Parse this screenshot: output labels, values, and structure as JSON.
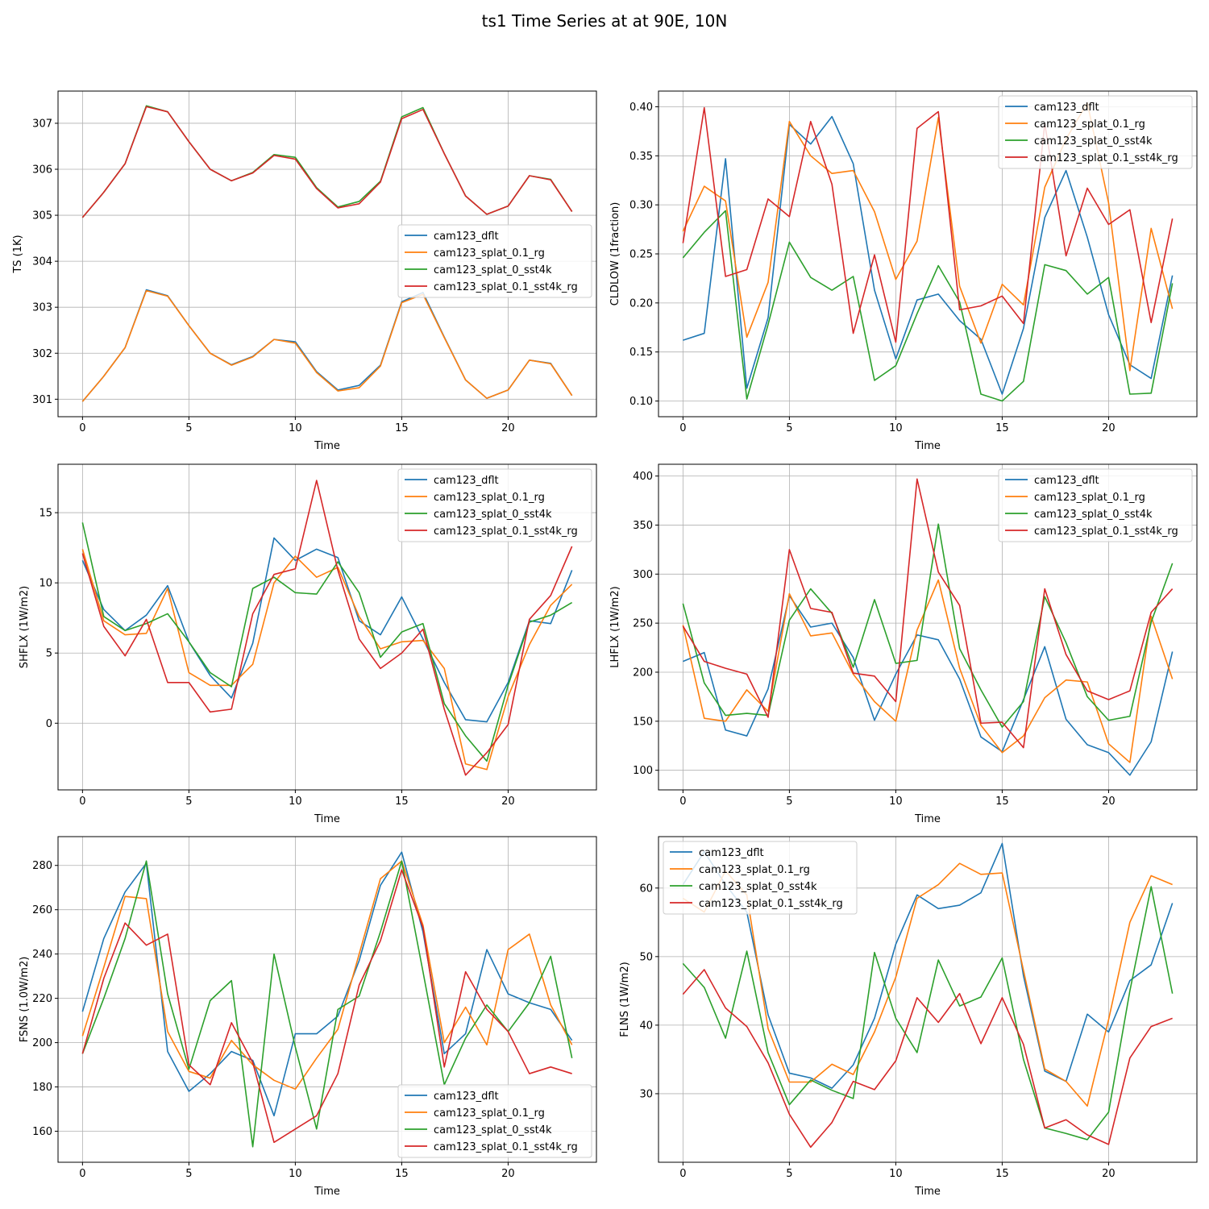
{
  "figure": {
    "title": "ts1 Time Series at at 90E, 10N"
  },
  "series_colors": [
    "#1f77b4",
    "#ff7f0e",
    "#2ca02c",
    "#d62728"
  ],
  "chart_data": [
    {
      "type": "line",
      "xlabel": "Time",
      "ylabel": "TS (1K)",
      "xlim": [
        -1.15,
        24.15
      ],
      "ylim": [
        300.62,
        307.7
      ],
      "xticks": [
        0,
        5,
        10,
        15,
        20
      ],
      "yticks": [
        301,
        302,
        303,
        304,
        305,
        306,
        307
      ],
      "grid": true,
      "legend_position": "center-right",
      "x": [
        0,
        1,
        2,
        3,
        4,
        5,
        6,
        7,
        8,
        9,
        10,
        11,
        12,
        13,
        14,
        15,
        16,
        17,
        18,
        19,
        20,
        21,
        22,
        23
      ],
      "series": [
        {
          "name": "cam123_dflt",
          "values": [
            300.95,
            301.5,
            302.12,
            303.38,
            303.25,
            302.6,
            302.0,
            301.75,
            301.93,
            302.3,
            302.25,
            301.6,
            301.2,
            301.3,
            301.74,
            303.12,
            303.32,
            302.35,
            301.42,
            301.02,
            301.2,
            301.85,
            301.78,
            301.08
          ]
        },
        {
          "name": "cam123_splat_0.1_rg",
          "values": [
            300.95,
            301.5,
            302.12,
            303.36,
            303.24,
            302.6,
            302.0,
            301.74,
            301.92,
            302.3,
            302.22,
            301.58,
            301.18,
            301.25,
            301.72,
            303.1,
            303.28,
            302.34,
            301.42,
            301.02,
            301.2,
            301.85,
            301.77,
            301.08
          ]
        },
        {
          "name": "cam123_splat_0_sst4k",
          "values": [
            304.95,
            305.5,
            306.12,
            307.38,
            307.25,
            306.6,
            306.0,
            305.75,
            305.93,
            306.32,
            306.26,
            305.6,
            305.18,
            305.3,
            305.74,
            307.14,
            307.34,
            306.34,
            305.42,
            305.02,
            305.2,
            305.86,
            305.78,
            305.08
          ]
        },
        {
          "name": "cam123_splat_0.1_sst4k_rg",
          "values": [
            304.95,
            305.5,
            306.12,
            307.36,
            307.25,
            306.6,
            306.0,
            305.75,
            305.92,
            306.3,
            306.22,
            305.58,
            305.16,
            305.25,
            305.72,
            307.1,
            307.3,
            306.34,
            305.42,
            305.02,
            305.2,
            305.86,
            305.77,
            305.08
          ]
        }
      ]
    },
    {
      "type": "line",
      "xlabel": "Time",
      "ylabel": "CLDLOW (1fraction)",
      "xlim": [
        -1.15,
        24.15
      ],
      "ylim": [
        0.084,
        0.416
      ],
      "xticks": [
        0,
        5,
        10,
        15,
        20
      ],
      "yticks": [
        0.1,
        0.15,
        0.2,
        0.25,
        0.3,
        0.35,
        0.4
      ],
      "ytick_labels": [
        "0.10",
        "0.15",
        "0.20",
        "0.25",
        "0.30",
        "0.35",
        "0.40"
      ],
      "grid": true,
      "legend_position": "top-right",
      "x": [
        0,
        1,
        2,
        3,
        4,
        5,
        6,
        7,
        8,
        9,
        10,
        11,
        12,
        13,
        14,
        15,
        16,
        17,
        18,
        19,
        20,
        21,
        22,
        23
      ],
      "series": [
        {
          "name": "cam123_dflt",
          "values": [
            0.162,
            0.169,
            0.347,
            0.113,
            0.185,
            0.382,
            0.362,
            0.39,
            0.342,
            0.213,
            0.143,
            0.203,
            0.209,
            0.182,
            0.163,
            0.107,
            0.174,
            0.287,
            0.335,
            0.267,
            0.188,
            0.137,
            0.123,
            0.228
          ]
        },
        {
          "name": "cam123_splat_0.1_rg",
          "values": [
            0.273,
            0.319,
            0.304,
            0.165,
            0.221,
            0.385,
            0.35,
            0.332,
            0.335,
            0.293,
            0.224,
            0.263,
            0.389,
            0.217,
            0.159,
            0.219,
            0.198,
            0.318,
            0.367,
            0.404,
            0.302,
            0.131,
            0.276,
            0.194
          ]
        },
        {
          "name": "cam123_splat_0_sst4k",
          "values": [
            0.246,
            0.272,
            0.294,
            0.102,
            0.178,
            0.262,
            0.226,
            0.213,
            0.227,
            0.121,
            0.136,
            0.189,
            0.238,
            0.201,
            0.107,
            0.1,
            0.12,
            0.239,
            0.233,
            0.209,
            0.226,
            0.107,
            0.108,
            0.22
          ]
        },
        {
          "name": "cam123_splat_0.1_sst4k_rg",
          "values": [
            0.261,
            0.399,
            0.227,
            0.234,
            0.306,
            0.288,
            0.385,
            0.321,
            0.169,
            0.249,
            0.16,
            0.378,
            0.395,
            0.193,
            0.197,
            0.207,
            0.179,
            0.383,
            0.248,
            0.317,
            0.28,
            0.295,
            0.18,
            0.286
          ]
        }
      ]
    },
    {
      "type": "line",
      "xlabel": "Time",
      "ylabel": "SHFLX (1W/m2)",
      "xlim": [
        -1.15,
        24.15
      ],
      "ylim": [
        -4.75,
        18.45
      ],
      "xticks": [
        0,
        5,
        10,
        15,
        20
      ],
      "yticks": [
        0,
        5,
        10,
        15
      ],
      "grid": true,
      "legend_position": "top-right",
      "x": [
        0,
        1,
        2,
        3,
        4,
        5,
        6,
        7,
        8,
        9,
        10,
        11,
        12,
        13,
        14,
        15,
        16,
        17,
        18,
        19,
        20,
        21,
        22,
        23
      ],
      "series": [
        {
          "name": "cam123_dflt",
          "values": [
            11.6,
            8.1,
            6.6,
            7.7,
            9.8,
            5.8,
            3.4,
            1.8,
            5.7,
            13.2,
            11.6,
            12.4,
            11.8,
            7.3,
            6.3,
            9.0,
            6.0,
            2.9,
            0.25,
            0.1,
            2.9,
            7.3,
            7.1,
            10.9
          ]
        },
        {
          "name": "cam123_splat_0.1_rg",
          "values": [
            12.4,
            7.3,
            6.3,
            6.4,
            9.6,
            3.6,
            2.7,
            2.7,
            4.2,
            10.0,
            11.9,
            10.4,
            11.1,
            7.6,
            5.3,
            5.8,
            5.9,
            3.9,
            -2.9,
            -3.3,
            1.9,
            5.6,
            8.4,
            9.9
          ]
        },
        {
          "name": "cam123_splat_0_sst4k",
          "values": [
            14.3,
            7.6,
            6.6,
            7.1,
            7.8,
            5.8,
            3.6,
            2.6,
            9.6,
            10.4,
            9.3,
            9.2,
            11.5,
            9.3,
            4.7,
            6.5,
            7.1,
            1.4,
            -0.9,
            -2.7,
            2.7,
            7.2,
            7.7,
            8.6
          ]
        },
        {
          "name": "cam123_splat_0.1_sst4k_rg",
          "values": [
            12.1,
            6.9,
            4.8,
            7.4,
            2.9,
            2.9,
            0.8,
            1.0,
            7.8,
            10.6,
            11.0,
            17.3,
            10.9,
            6.0,
            3.9,
            5.0,
            6.7,
            1.0,
            -3.7,
            -2.1,
            -0.1,
            7.4,
            9.1,
            12.6
          ]
        }
      ]
    },
    {
      "type": "line",
      "xlabel": "Time",
      "ylabel": "LHFLX (1W/m2)",
      "xlim": [
        -1.15,
        24.15
      ],
      "ylim": [
        80.0,
        412.0
      ],
      "xticks": [
        0,
        5,
        10,
        15,
        20
      ],
      "yticks": [
        100,
        150,
        200,
        250,
        300,
        350,
        400
      ],
      "grid": true,
      "legend_position": "top-right",
      "x": [
        0,
        1,
        2,
        3,
        4,
        5,
        6,
        7,
        8,
        9,
        10,
        11,
        12,
        13,
        14,
        15,
        16,
        17,
        18,
        19,
        20,
        21,
        22,
        23
      ],
      "series": [
        {
          "name": "cam123_dflt",
          "values": [
            211,
            220,
            141,
            135,
            183,
            278,
            246,
            250,
            215,
            151,
            198,
            238,
            233,
            193,
            134,
            119,
            172,
            226,
            152,
            126,
            118,
            95,
            129,
            221
          ]
        },
        {
          "name": "cam123_splat_0.1_rg",
          "values": [
            248,
            153,
            150,
            182,
            160,
            280,
            237,
            240,
            198,
            170,
            150,
            243,
            294,
            204,
            146,
            118,
            135,
            174,
            192,
            190,
            127,
            108,
            257,
            193
          ]
        },
        {
          "name": "cam123_splat_0_sst4k",
          "values": [
            270,
            189,
            156,
            158,
            156,
            253,
            285,
            260,
            205,
            274,
            209,
            212,
            351,
            224,
            182,
            144,
            170,
            277,
            230,
            175,
            151,
            155,
            251,
            311
          ]
        },
        {
          "name": "cam123_splat_0.1_sst4k_rg",
          "values": [
            247,
            211,
            204,
            198,
            154,
            325,
            265,
            261,
            199,
            196,
            170,
            397,
            302,
            268,
            148,
            149,
            123,
            285,
            218,
            181,
            172,
            181,
            261,
            285
          ]
        }
      ]
    },
    {
      "type": "line",
      "xlabel": "Time",
      "ylabel": "FSNS (1.0W/m2)",
      "xlim": [
        -1.15,
        24.15
      ],
      "ylim": [
        146.0,
        293.0
      ],
      "xticks": [
        0,
        5,
        10,
        15,
        20
      ],
      "yticks": [
        160,
        180,
        200,
        220,
        240,
        260,
        280
      ],
      "grid": true,
      "legend_position": "bottom-right",
      "x": [
        0,
        1,
        2,
        3,
        4,
        5,
        6,
        7,
        8,
        9,
        10,
        11,
        12,
        13,
        14,
        15,
        16,
        17,
        18,
        19,
        20,
        21,
        22,
        23
      ],
      "series": [
        {
          "name": "cam123_dflt",
          "values": [
            214,
            247,
            268,
            281,
            196,
            178,
            186,
            196,
            192,
            167,
            204,
            204,
            212,
            237,
            271,
            286,
            250,
            195,
            204,
            242,
            222,
            218,
            215,
            201
          ]
        },
        {
          "name": "cam123_splat_0.1_rg",
          "values": [
            203,
            234,
            266,
            265,
            205,
            187,
            184,
            201,
            190,
            183,
            179,
            193,
            206,
            240,
            274,
            282,
            253,
            200,
            216,
            199,
            242,
            249,
            217,
            199
          ]
        },
        {
          "name": "cam123_splat_0_sst4k",
          "values": [
            195,
            220,
            247,
            282,
            222,
            188,
            219,
            228,
            153,
            240,
            198,
            161,
            215,
            221,
            250,
            282,
            232,
            181,
            202,
            217,
            205,
            218,
            239,
            193
          ]
        },
        {
          "name": "cam123_splat_0.1_sst4k_rg",
          "values": [
            195,
            229,
            254,
            244,
            249,
            190,
            181,
            209,
            191,
            155,
            161,
            167,
            186,
            226,
            246,
            278,
            252,
            189,
            232,
            215,
            205,
            186,
            189,
            186
          ]
        }
      ]
    },
    {
      "type": "line",
      "xlabel": "Time",
      "ylabel": "FLNS (1W/m2)",
      "xlim": [
        -1.15,
        24.15
      ],
      "ylim": [
        20.0,
        67.5
      ],
      "xticks": [
        0,
        5,
        10,
        15,
        20
      ],
      "yticks": [
        30,
        40,
        50,
        60
      ],
      "grid": true,
      "legend_position": "top-left",
      "x": [
        0,
        1,
        2,
        3,
        4,
        5,
        6,
        7,
        8,
        9,
        10,
        11,
        12,
        13,
        14,
        15,
        16,
        17,
        18,
        19,
        20,
        21,
        22,
        23
      ],
      "series": [
        {
          "name": "cam123_dflt",
          "values": [
            60.5,
            65.3,
            60.5,
            56.5,
            41.5,
            33.0,
            32.3,
            30.8,
            34.2,
            41.0,
            51.8,
            59.0,
            57.0,
            57.5,
            59.3,
            66.5,
            47.2,
            33.3,
            31.8,
            41.6,
            39.0,
            46.5,
            48.8,
            57.8
          ]
        },
        {
          "name": "cam123_splat_0.1_rg",
          "values": [
            58.5,
            56.5,
            62.5,
            59.0,
            39.5,
            31.7,
            31.7,
            34.3,
            32.8,
            39.0,
            47.0,
            58.5,
            60.5,
            63.6,
            62.0,
            62.2,
            48.0,
            33.6,
            31.8,
            28.2,
            40.8,
            55.0,
            61.8,
            60.5
          ]
        },
        {
          "name": "cam123_splat_0_sst4k",
          "values": [
            49.0,
            45.5,
            38.1,
            50.8,
            36.0,
            28.4,
            32.0,
            30.5,
            29.3,
            50.6,
            41.0,
            36.0,
            49.5,
            42.8,
            44.1,
            49.8,
            35.0,
            25.0,
            24.2,
            23.3,
            27.3,
            45.0,
            60.2,
            44.6
          ]
        },
        {
          "name": "cam123_splat_0.1_sst4k_rg",
          "values": [
            44.5,
            48.1,
            42.5,
            39.8,
            34.5,
            27.0,
            22.2,
            25.8,
            31.8,
            30.6,
            34.8,
            44.0,
            40.4,
            44.6,
            37.3,
            44.0,
            37.2,
            25.0,
            26.2,
            24.0,
            22.6,
            35.2,
            39.8,
            41.0
          ]
        }
      ]
    }
  ]
}
